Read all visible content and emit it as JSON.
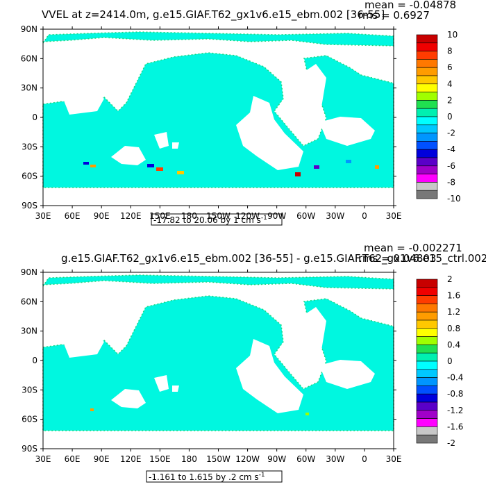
{
  "panels": [
    {
      "title": "VVEL at z=2414.0m, g.e15.GIAF.T62_gx1v6.e15_ebm.002 [36-55]",
      "mean": "mean = -0.04878",
      "rms": "rms = 0.6927",
      "range_text": "-17.82 to 20.06 by 1 cm s",
      "range_unit_sup": "-1",
      "colorbar_labels": [
        "10",
        "8",
        "6",
        "4",
        "2",
        "0",
        "-2",
        "-4",
        "-6",
        "-8",
        "-10"
      ]
    },
    {
      "title": "g.e15.GIAF.T62_gx1v6.e15_ebm.002 [36-55] - g.e15.GIAF.T62_gx1v6.e15_ctrl.002",
      "mean": "mean = -0.002271",
      "rms": "rms = 0.04803",
      "range_text": "-1.161 to 1.615 by .2 cm s",
      "range_unit_sup": "-1",
      "colorbar_labels": [
        "2",
        "1.6",
        "1.2",
        "0.8",
        "0.4",
        "0",
        "-0.4",
        "-0.8",
        "-1.2",
        "-1.6",
        "-2"
      ]
    }
  ],
  "lat_labels": [
    "90N",
    "60N",
    "30N",
    "0",
    "30S",
    "60S",
    "90S"
  ],
  "lon_labels": [
    "30E",
    "60E",
    "90E",
    "120E",
    "150E",
    "180",
    "150W",
    "120W",
    "90W",
    "60W",
    "30W",
    "0",
    "30E"
  ],
  "colors": {
    "ocean": "#00f7e0",
    "ocean_alt": "#1ad882",
    "colorbar": [
      "#c80000",
      "#f00000",
      "#ff3c00",
      "#ff7800",
      "#ff9c00",
      "#ffc800",
      "#ffff00",
      "#a0ff00",
      "#20e050",
      "#00f0b0",
      "#00ffff",
      "#00c8ff",
      "#0096ff",
      "#0050ff",
      "#0000dc",
      "#5a00c8",
      "#a000c8",
      "#ff00ff",
      "#c8c8c8",
      "#787878"
    ]
  }
}
